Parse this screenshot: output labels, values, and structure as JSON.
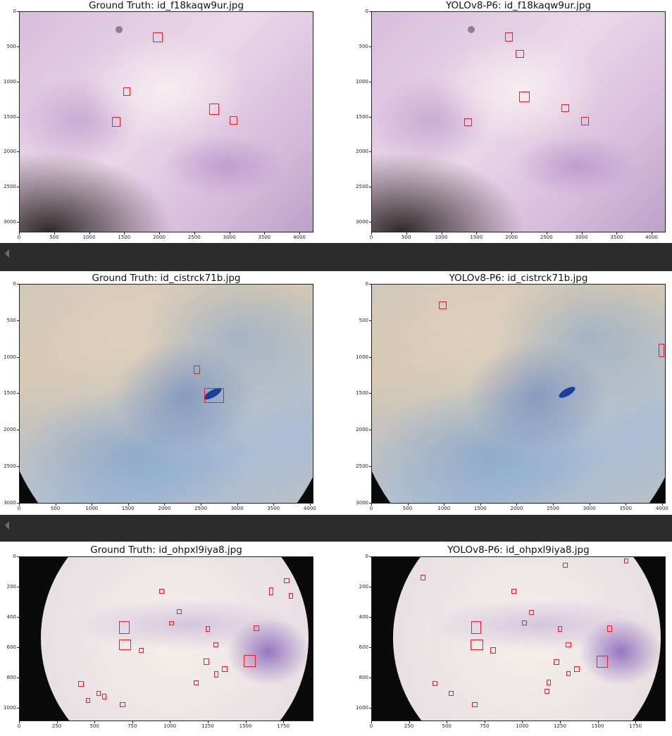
{
  "rows": [
    {
      "panels": [
        {
          "title": "Ground Truth: id_f18kaqw9ur.jpg",
          "xticks": [
            "0",
            "500",
            "1000",
            "1500",
            "2000",
            "2500",
            "3000",
            "3500",
            "4000"
          ],
          "yticks": [
            "0",
            "500",
            "1000",
            "1500",
            "2000",
            "2500",
            "3000"
          ],
          "boxes": [
            {
              "label": "box",
              "x": 1900,
              "y": 290,
              "w": 140,
              "h": 140
            },
            {
              "label": "box",
              "x": 1480,
              "y": 1070,
              "w": 100,
              "h": 120
            },
            {
              "label": "box",
              "x": 2700,
              "y": 1300,
              "w": 140,
              "h": 160
            },
            {
              "label": "box",
              "x": 2990,
              "y": 1480,
              "w": 110,
              "h": 130
            },
            {
              "label": "box",
              "x": 1320,
              "y": 1490,
              "w": 120,
              "h": 150
            }
          ]
        },
        {
          "title": "YOLOv8-P6: id_f18kaqw9ur.jpg",
          "xticks": [
            "0",
            "500",
            "1000",
            "1500",
            "2000",
            "2500",
            "3000",
            "3500",
            "4000"
          ],
          "yticks": [
            "0",
            "500",
            "1000",
            "1500",
            "2000",
            "2500",
            "3000"
          ],
          "boxes": [
            {
              "label": "box",
              "x": 1900,
              "y": 290,
              "w": 110,
              "h": 130
            },
            {
              "label": "box",
              "x": 2050,
              "y": 540,
              "w": 120,
              "h": 110
            },
            {
              "label": "box",
              "x": 2100,
              "y": 1130,
              "w": 150,
              "h": 150
            },
            {
              "label": "box",
              "x": 2700,
              "y": 1310,
              "w": 110,
              "h": 110
            },
            {
              "label": "box",
              "x": 2980,
              "y": 1490,
              "w": 110,
              "h": 130
            },
            {
              "label": "box",
              "x": 1320,
              "y": 1510,
              "w": 110,
              "h": 120
            }
          ]
        }
      ]
    },
    {
      "panels": [
        {
          "title": "Ground Truth: id_cistrck71b.jpg",
          "xticks": [
            "0",
            "500",
            "1000",
            "1500",
            "2000",
            "2500",
            "3000",
            "3500",
            "4000"
          ],
          "yticks": [
            "0",
            "500",
            "1000",
            "1500",
            "2000",
            "2500",
            "3000"
          ],
          "boxes": [
            {
              "label": "box",
              "x": 2390,
              "y": 1110,
              "w": 90,
              "h": 120
            },
            {
              "label": "box",
              "x": 2540,
              "y": 1420,
              "w": 270,
              "h": 200
            }
          ]
        },
        {
          "title": "YOLOv8-P6: id_cistrck71b.jpg",
          "xticks": [
            "0",
            "500",
            "1000",
            "1500",
            "2000",
            "2500",
            "3000",
            "3500",
            "4000"
          ],
          "yticks": [
            "0",
            "500",
            "1000",
            "1500",
            "2000",
            "2500",
            "3000"
          ],
          "boxes": [
            {
              "label": "box",
              "x": 920,
              "y": 230,
              "w": 110,
              "h": 110
            },
            {
              "label": "box",
              "x": 3940,
              "y": 810,
              "w": 80,
              "h": 180
            }
          ]
        }
      ]
    },
    {
      "panels": [
        {
          "title": "Ground Truth: id_ohpxl9iya8.jpg",
          "xticks": [
            "0",
            "250",
            "500",
            "750",
            "1000",
            "1250",
            "1500",
            "1750"
          ],
          "yticks": [
            "0",
            "200",
            "400",
            "600",
            "800",
            "1000"
          ],
          "boxes": [
            {
              "label": "box",
              "x": 658,
              "y": 426,
              "w": 70,
              "h": 80
            },
            {
              "label": "box",
              "x": 658,
              "y": 544,
              "w": 80,
              "h": 72
            },
            {
              "label": "box",
              "x": 925,
              "y": 210,
              "w": 30,
              "h": 30
            },
            {
              "label": "box",
              "x": 1042,
              "y": 344,
              "w": 30,
              "h": 35
            },
            {
              "label": "box",
              "x": 990,
              "y": 424,
              "w": 30,
              "h": 30
            },
            {
              "label": "box",
              "x": 1230,
              "y": 456,
              "w": 28,
              "h": 40
            },
            {
              "label": "box",
              "x": 1282,
              "y": 562,
              "w": 34,
              "h": 32
            },
            {
              "label": "box",
              "x": 790,
              "y": 602,
              "w": 30,
              "h": 32
            },
            {
              "label": "box",
              "x": 1218,
              "y": 672,
              "w": 38,
              "h": 40
            },
            {
              "label": "box",
              "x": 1287,
              "y": 756,
              "w": 28,
              "h": 40
            },
            {
              "label": "box",
              "x": 1337,
              "y": 720,
              "w": 40,
              "h": 40
            },
            {
              "label": "box",
              "x": 1485,
              "y": 648,
              "w": 80,
              "h": 80
            },
            {
              "label": "box",
              "x": 1550,
              "y": 450,
              "w": 34,
              "h": 40
            },
            {
              "label": "box",
              "x": 1650,
              "y": 200,
              "w": 28,
              "h": 50
            },
            {
              "label": "box",
              "x": 1750,
              "y": 138,
              "w": 35,
              "h": 35
            },
            {
              "label": "box",
              "x": 1780,
              "y": 236,
              "w": 30,
              "h": 38
            },
            {
              "label": "box",
              "x": 1150,
              "y": 816,
              "w": 34,
              "h": 30
            },
            {
              "label": "box",
              "x": 386,
              "y": 820,
              "w": 38,
              "h": 35
            },
            {
              "label": "box",
              "x": 510,
              "y": 886,
              "w": 28,
              "h": 30
            },
            {
              "label": "box",
              "x": 545,
              "y": 902,
              "w": 30,
              "h": 38
            },
            {
              "label": "box",
              "x": 440,
              "y": 932,
              "w": 28,
              "h": 34
            },
            {
              "label": "box",
              "x": 663,
              "y": 958,
              "w": 36,
              "h": 36
            }
          ]
        },
        {
          "title": "YOLOv8-P6: id_ohpxl9iya8.jpg",
          "xticks": [
            "0",
            "250",
            "500",
            "750",
            "1000",
            "1250",
            "1500",
            "1750"
          ],
          "yticks": [
            "0",
            "200",
            "400",
            "600",
            "800",
            "1000"
          ],
          "boxes": [
            {
              "label": "box",
              "x": 323,
              "y": 118,
              "w": 32,
              "h": 34
            },
            {
              "label": "box",
              "x": 1265,
              "y": 36,
              "w": 30,
              "h": 34
            },
            {
              "label": "box",
              "x": 1670,
              "y": 10,
              "w": 30,
              "h": 32
            },
            {
              "label": "box",
              "x": 925,
              "y": 210,
              "w": 32,
              "h": 32
            },
            {
              "label": "box",
              "x": 1042,
              "y": 348,
              "w": 32,
              "h": 32
            },
            {
              "label": "box",
              "x": 995,
              "y": 420,
              "w": 30,
              "h": 34
            },
            {
              "label": "box",
              "x": 1230,
              "y": 458,
              "w": 30,
              "h": 36
            },
            {
              "label": "box",
              "x": 1557,
              "y": 452,
              "w": 36,
              "h": 40
            },
            {
              "label": "box",
              "x": 658,
              "y": 426,
              "w": 66,
              "h": 80
            },
            {
              "label": "box",
              "x": 655,
              "y": 546,
              "w": 80,
              "h": 70
            },
            {
              "label": "box",
              "x": 785,
              "y": 598,
              "w": 36,
              "h": 38
            },
            {
              "label": "box",
              "x": 1282,
              "y": 562,
              "w": 36,
              "h": 36
            },
            {
              "label": "box",
              "x": 1205,
              "y": 676,
              "w": 36,
              "h": 38
            },
            {
              "label": "box",
              "x": 1337,
              "y": 720,
              "w": 40,
              "h": 40
            },
            {
              "label": "box",
              "x": 1287,
              "y": 754,
              "w": 30,
              "h": 34
            },
            {
              "label": "box",
              "x": 1487,
              "y": 650,
              "w": 76,
              "h": 80
            },
            {
              "label": "box",
              "x": 1155,
              "y": 810,
              "w": 32,
              "h": 36
            },
            {
              "label": "box",
              "x": 1143,
              "y": 872,
              "w": 32,
              "h": 34
            },
            {
              "label": "box",
              "x": 400,
              "y": 820,
              "w": 32,
              "h": 34
            },
            {
              "label": "box",
              "x": 507,
              "y": 884,
              "w": 34,
              "h": 36
            },
            {
              "label": "box",
              "x": 663,
              "y": 958,
              "w": 36,
              "h": 36
            }
          ]
        }
      ]
    }
  ]
}
